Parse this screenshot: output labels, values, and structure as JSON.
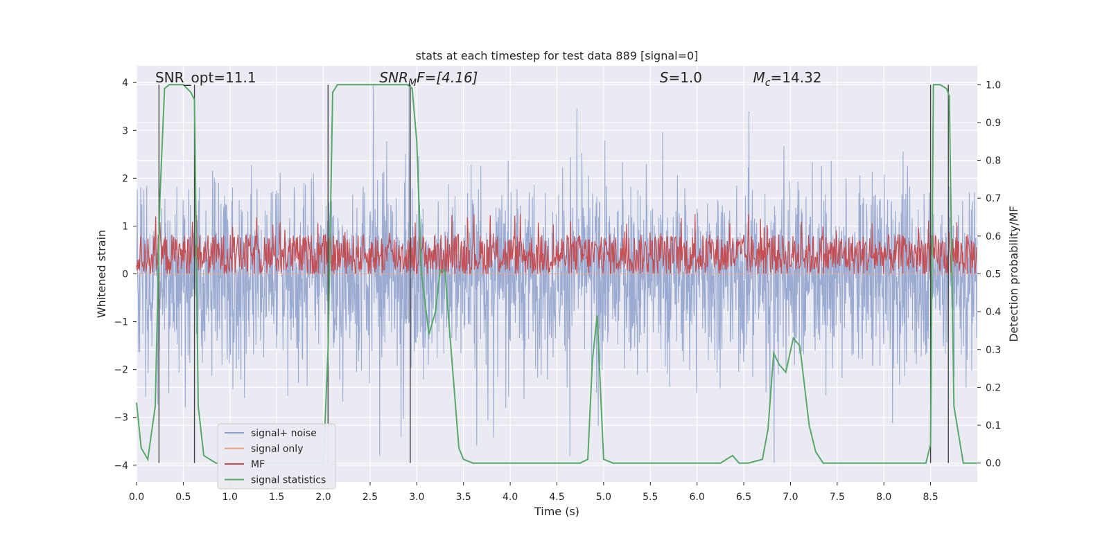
{
  "chart_data": {
    "type": "line",
    "title": "stats at each timestep for test data 889 [signal=0]",
    "xlabel": "Time (s)",
    "ylabel": "Whitened strain",
    "y2label": "Detection probability/MF",
    "xlim": [
      0,
      9.0
    ],
    "ylim": [
      -4.35,
      4.35
    ],
    "y2lim": [
      -0.05,
      1.05
    ],
    "xticks": [
      0.0,
      0.5,
      1.0,
      1.5,
      2.0,
      2.5,
      3.0,
      3.5,
      4.0,
      4.5,
      5.0,
      5.5,
      6.0,
      6.5,
      7.0,
      7.5,
      8.0,
      8.5
    ],
    "xtick_labels": [
      "0.0",
      "0.5",
      "1.0",
      "1.5",
      "2.0",
      "2.5",
      "3.0",
      "3.5",
      "4.0",
      "4.5",
      "5.0",
      "5.5",
      "6.0",
      "6.5",
      "7.0",
      "7.5",
      "8.0",
      "8.5"
    ],
    "yticks": [
      -4,
      -3,
      -2,
      -1,
      0,
      1,
      2,
      3,
      4
    ],
    "ytick_labels": [
      "−4",
      "−3",
      "−2",
      "−1",
      "0",
      "1",
      "2",
      "3",
      "4"
    ],
    "y2ticks": [
      0.0,
      0.1,
      0.2,
      0.3,
      0.4,
      0.5,
      0.6,
      0.7,
      0.8,
      0.9,
      1.0
    ],
    "y2tick_labels": [
      "0.0",
      "0.1",
      "0.2",
      "0.3",
      "0.4",
      "0.5",
      "0.6",
      "0.7",
      "0.8",
      "0.9",
      "1.0"
    ],
    "grid": true,
    "legend_placement": "lower-left",
    "series": [
      {
        "name": "signal+ noise",
        "color": "#8c9fcb",
        "axis": "left",
        "amplitude": 1.0,
        "kind": "noise"
      },
      {
        "name": "signal only",
        "color": "#e8a58a",
        "axis": "left",
        "kind": "flat"
      },
      {
        "name": "MF",
        "color": "#c44e52",
        "axis": "right",
        "kind": "noise-band",
        "range": [
          0.5,
          0.6
        ]
      },
      {
        "name": "signal statistics",
        "color": "#55a868",
        "axis": "right",
        "kind": "line",
        "x": [
          0.0,
          0.05,
          0.12,
          0.2,
          0.25,
          0.3,
          0.35,
          0.5,
          0.58,
          0.62,
          0.66,
          0.72,
          0.85,
          1.0,
          1.5,
          2.0,
          2.05,
          2.1,
          2.15,
          2.2,
          2.5,
          2.9,
          2.95,
          3.0,
          3.05,
          3.13,
          3.2,
          3.25,
          3.3,
          3.38,
          3.45,
          3.5,
          3.6,
          4.0,
          4.5,
          4.75,
          4.83,
          4.88,
          4.93,
          5.0,
          5.1,
          6.0,
          6.25,
          6.38,
          6.45,
          6.55,
          6.7,
          6.76,
          6.82,
          6.88,
          6.95,
          7.03,
          7.1,
          7.2,
          7.27,
          7.35,
          7.5,
          8.0,
          8.45,
          8.5,
          8.53,
          8.6,
          8.67,
          8.7,
          8.75,
          8.85,
          8.9,
          9.0
        ],
        "values": [
          0.16,
          0.04,
          0.01,
          0.15,
          0.7,
          0.99,
          1.0,
          1.0,
          0.98,
          0.96,
          0.15,
          0.02,
          0.0,
          0.0,
          0.0,
          0.0,
          0.3,
          0.98,
          1.0,
          1.0,
          1.0,
          1.0,
          0.99,
          0.85,
          0.5,
          0.34,
          0.4,
          0.51,
          0.51,
          0.26,
          0.04,
          0.01,
          0.0,
          0.0,
          0.0,
          0.0,
          0.01,
          0.27,
          0.39,
          0.01,
          0.0,
          0.0,
          0.0,
          0.02,
          0.0,
          0.0,
          0.01,
          0.09,
          0.29,
          0.26,
          0.24,
          0.33,
          0.31,
          0.1,
          0.03,
          0.0,
          0.0,
          0.0,
          0.0,
          0.05,
          1.0,
          1.0,
          0.99,
          0.97,
          0.15,
          0.0,
          0.0,
          0.0
        ]
      }
    ],
    "vlines": [
      0.24,
      0.62,
      2.05,
      2.93,
      8.5,
      8.69
    ],
    "annotations": [
      {
        "text": "SNR_opt=11.1",
        "x": 0.2,
        "y": 4.0,
        "style": "plain"
      },
      {
        "prefix": "SNR",
        "sub": "M",
        "suffix": "F=[4.16]",
        "x": 2.6,
        "y": 4.0,
        "style": "math"
      },
      {
        "prefix": "S",
        "sub": "",
        "suffix": "=1.0",
        "x": 5.6,
        "y": 4.0,
        "style": "math"
      },
      {
        "prefix": "M",
        "sub": "c",
        "suffix": "=14.32",
        "x": 6.6,
        "y": 4.0,
        "style": "math"
      }
    ],
    "legend_order": [
      "signal+ noise",
      "signal only",
      "MF",
      "signal statistics"
    ]
  }
}
